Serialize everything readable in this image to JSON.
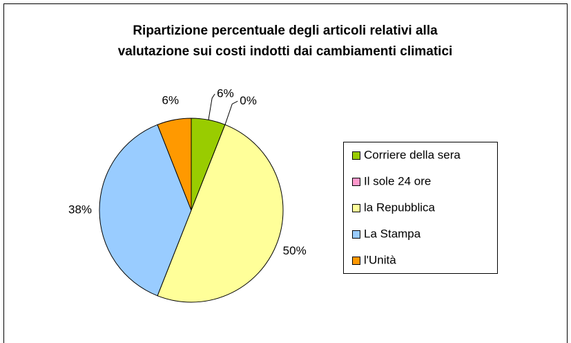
{
  "chart_data": {
    "type": "pie",
    "title": [
      "Ripartizione percentuale degli articoli relativi alla",
      "valutazione sui costi indotti dai cambiamenti climatici"
    ],
    "categories": [
      "Corriere della sera",
      "Il sole 24 ore",
      "la Repubblica",
      "La Stampa",
      "l'Unità"
    ],
    "values": [
      6,
      0,
      50,
      38,
      6
    ],
    "value_labels": [
      "6%",
      "0%",
      "50%",
      "38%",
      "6%"
    ],
    "colors": [
      "#99cc00",
      "#ff99cc",
      "#ffff99",
      "#99ccff",
      "#ff9900"
    ],
    "legend": "right"
  }
}
